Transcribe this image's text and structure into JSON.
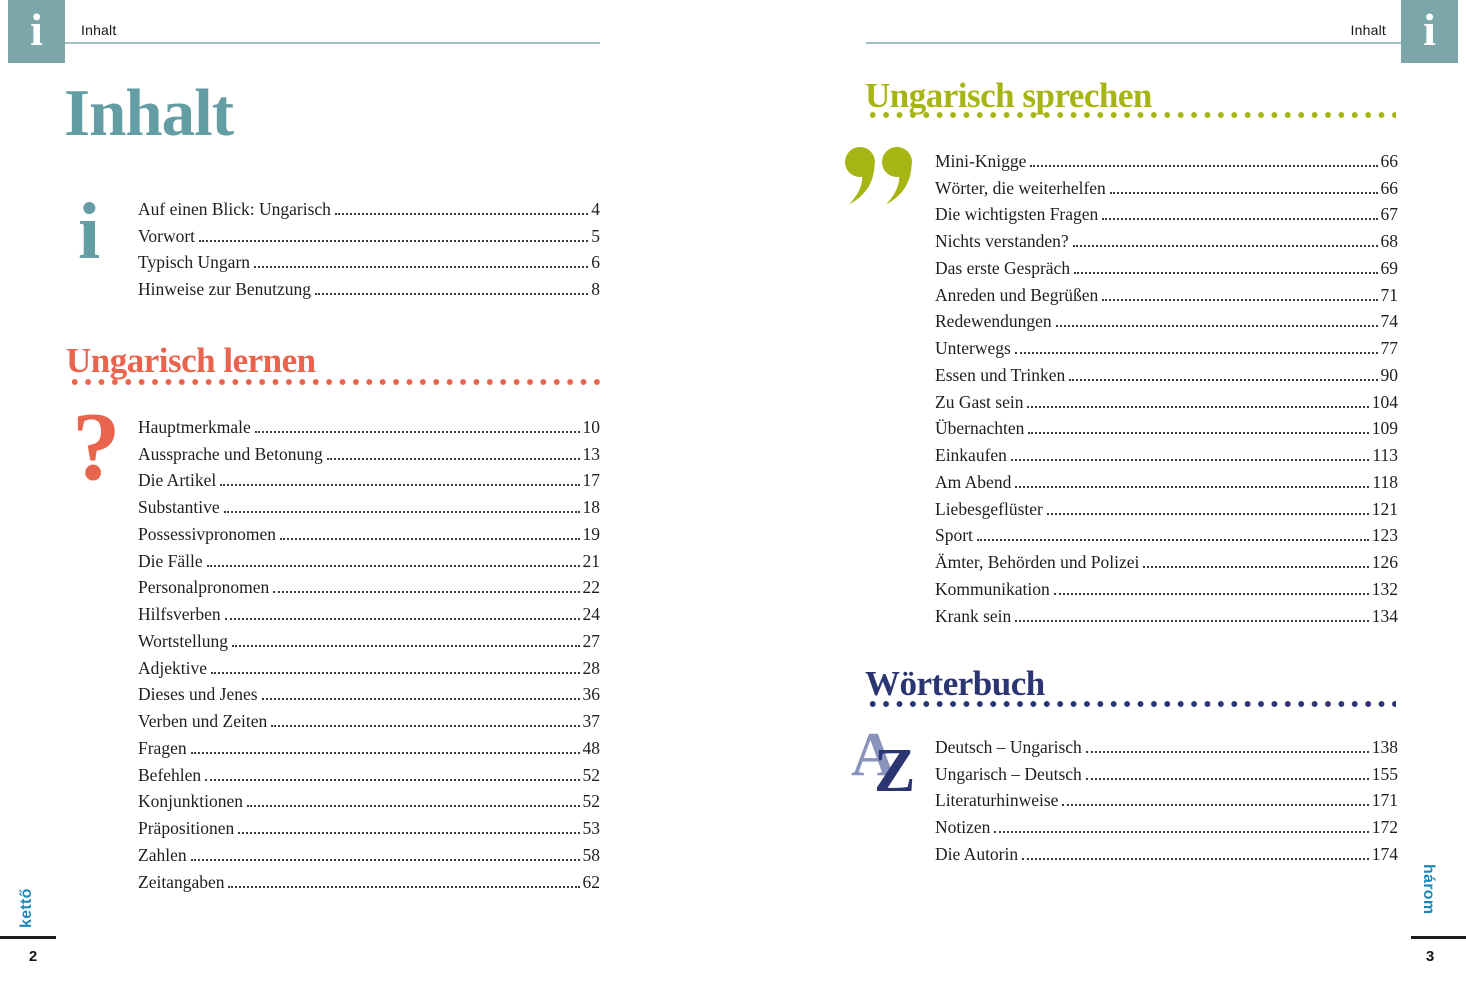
{
  "colors": {
    "teal_box": "#7ba7ab",
    "title_teal": "#659da4",
    "orange": "#e8644d",
    "green": "#a6b513",
    "navy": "#2b3572",
    "footer_blue": "#1c87b7",
    "text": "#1e1e1e"
  },
  "left_page": {
    "header": {
      "label": "Inhalt",
      "corner_icon": "i"
    },
    "title": "Inhalt",
    "intro_block": {
      "icon": "i",
      "items": [
        {
          "label": "Auf einen Blick: Ungarisch",
          "page": "4"
        },
        {
          "label": "Vorwort",
          "page": "5"
        },
        {
          "label": "Typisch Ungarn",
          "page": "6"
        },
        {
          "label": "Hinweise zur Benutzung",
          "page": "8"
        }
      ]
    },
    "learn_section": {
      "title": "Ungarisch lernen",
      "icon": "?",
      "items": [
        {
          "label": "Hauptmerkmale",
          "page": "10"
        },
        {
          "label": "Aussprache und Betonung",
          "page": "13"
        },
        {
          "label": "Die Artikel",
          "page": "17"
        },
        {
          "label": "Substantive",
          "page": "18"
        },
        {
          "label": "Possessivpronomen",
          "page": "19"
        },
        {
          "label": "Die Fälle",
          "page": "21"
        },
        {
          "label": "Personalpronomen",
          "page": "22"
        },
        {
          "label": "Hilfsverben",
          "page": "24"
        },
        {
          "label": "Wortstellung",
          "page": "27"
        },
        {
          "label": "Adjektive",
          "page": "28"
        },
        {
          "label": "Dieses und Jenes",
          "page": "36"
        },
        {
          "label": "Verben und Zeiten",
          "page": "37"
        },
        {
          "label": "Fragen",
          "page": "48"
        },
        {
          "label": "Befehlen",
          "page": "52"
        },
        {
          "label": "Konjunktionen",
          "page": "52"
        },
        {
          "label": "Präpositionen",
          "page": "53"
        },
        {
          "label": "Zahlen",
          "page": "58"
        },
        {
          "label": "Zeitangaben",
          "page": "62"
        }
      ]
    },
    "footer": {
      "vertical_label": "kettő",
      "page_number": "2"
    }
  },
  "right_page": {
    "header": {
      "label": "Inhalt",
      "corner_icon": "i"
    },
    "speak_section": {
      "title": "Ungarisch sprechen",
      "icon_glyph": "”",
      "items": [
        {
          "label": "Mini-Knigge",
          "page": "66"
        },
        {
          "label": "Wörter, die weiterhelfen",
          "page": "66"
        },
        {
          "label": "Die wichtigsten Fragen",
          "page": "67"
        },
        {
          "label": "Nichts verstanden?",
          "page": "68"
        },
        {
          "label": "Das erste Gespräch",
          "page": "69"
        },
        {
          "label": "Anreden und Begrüßen",
          "page": "71"
        },
        {
          "label": "Redewendungen",
          "page": "74"
        },
        {
          "label": "Unterwegs",
          "page": "77"
        },
        {
          "label": "Essen und Trinken",
          "page": "90"
        },
        {
          "label": "Zu Gast sein",
          "page": "104"
        },
        {
          "label": "Übernachten",
          "page": "109"
        },
        {
          "label": "Einkaufen",
          "page": "113"
        },
        {
          "label": "Am Abend",
          "page": "118"
        },
        {
          "label": "Liebesgeflüster",
          "page": "121"
        },
        {
          "label": "Sport",
          "page": "123"
        },
        {
          "label": "Ämter, Behörden und Polizei",
          "page": "126"
        },
        {
          "label": "Kommunikation",
          "page": "132"
        },
        {
          "label": "Krank sein",
          "page": "134"
        }
      ]
    },
    "dictionary_section": {
      "title": "Wörterbuch",
      "icon_letter_a": "A",
      "icon_letter_z": "Z",
      "items": [
        {
          "label": "Deutsch – Ungarisch",
          "page": "138"
        },
        {
          "label": "Ungarisch – Deutsch",
          "page": "155"
        },
        {
          "label": "Literaturhinweise",
          "page": "171"
        },
        {
          "label": "Notizen",
          "page": "172"
        },
        {
          "label": "Die Autorin",
          "page": "174"
        }
      ]
    },
    "footer": {
      "vertical_label": "három",
      "page_number": "3"
    }
  }
}
